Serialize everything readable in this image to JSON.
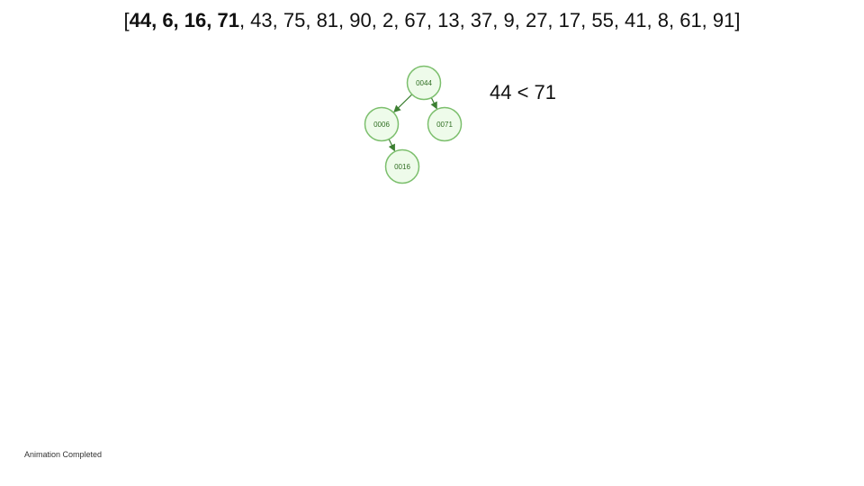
{
  "array": {
    "open_bracket": "[",
    "close_bracket": "]",
    "separator": ", ",
    "values": [
      44,
      6,
      16,
      71,
      43,
      75,
      81,
      90,
      2,
      67,
      13,
      37,
      9,
      27,
      17,
      55,
      41,
      8,
      61,
      91
    ],
    "bold_count": 4
  },
  "comparison": {
    "text": "44 < 71"
  },
  "status": {
    "text": "Animation Completed"
  },
  "tree": {
    "nodes": [
      {
        "id": "n44",
        "label": "0044"
      },
      {
        "id": "n06",
        "label": "0006"
      },
      {
        "id": "n71",
        "label": "0071"
      },
      {
        "id": "n16",
        "label": "0016"
      }
    ],
    "edges": [
      {
        "from": "n44",
        "to": "n06"
      },
      {
        "from": "n44",
        "to": "n71"
      },
      {
        "from": "n06",
        "to": "n16"
      }
    ]
  },
  "colors": {
    "node_fill": "#eefbea",
    "node_stroke": "#7cbf6d",
    "node_text": "#2f6e22",
    "edge": "#3c7f32"
  }
}
